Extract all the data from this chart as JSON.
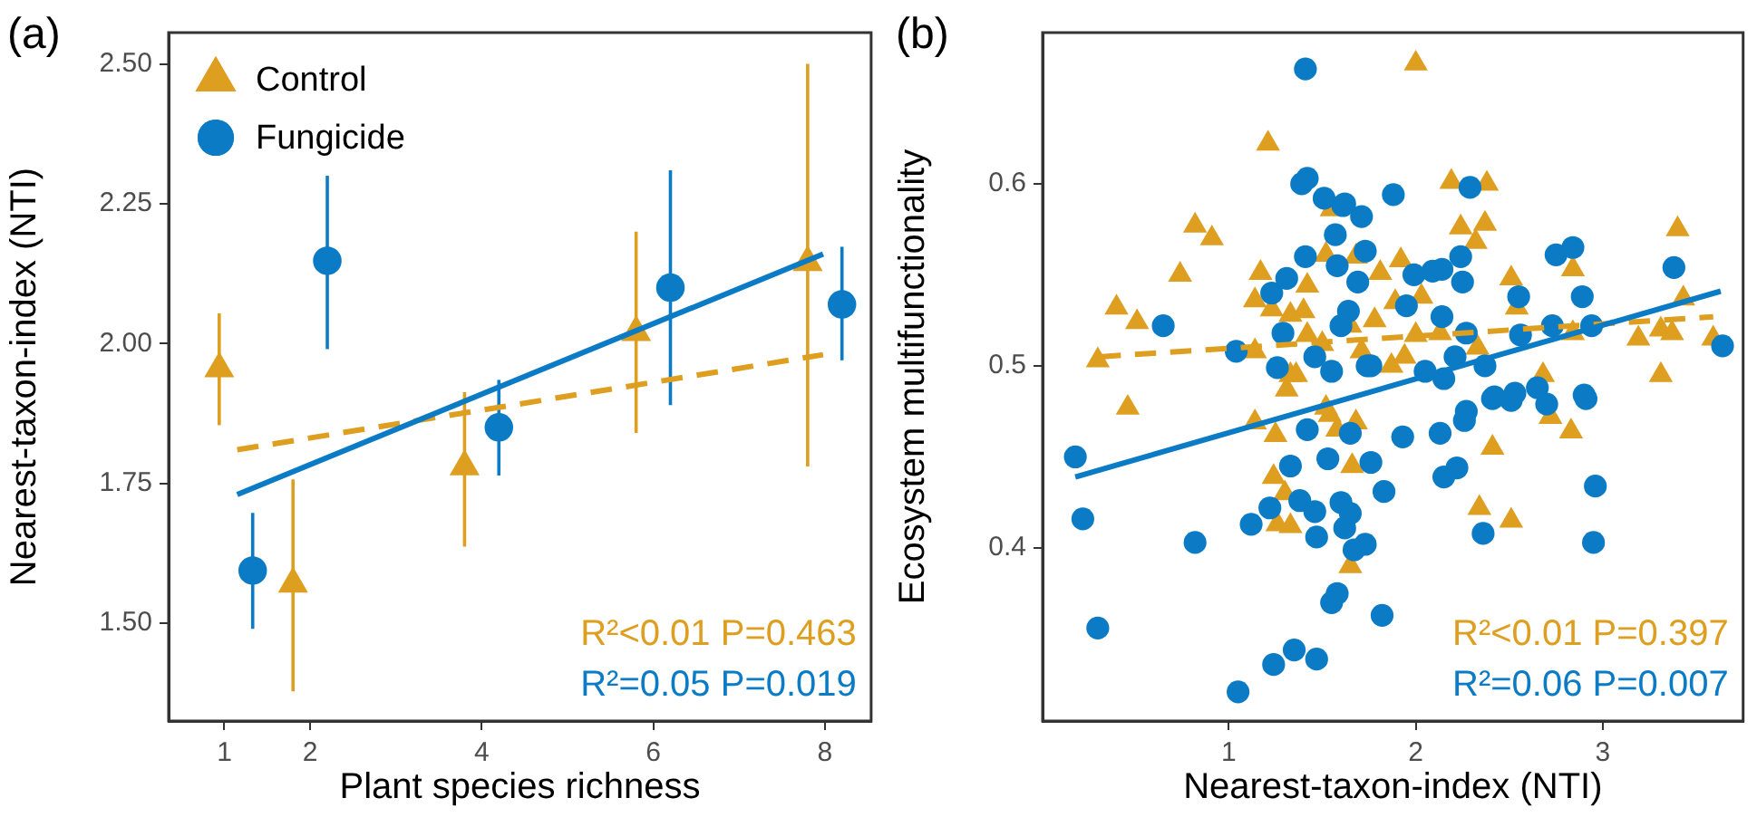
{
  "chart_data": [
    {
      "type": "scatter",
      "title": "(a)",
      "xlabel": "Plant species richness",
      "ylabel": "Nearest-taxon-index (NTI)",
      "xlim": [
        0.35,
        8.54
      ],
      "xticks": [
        1,
        2,
        4,
        6,
        8
      ],
      "ylim": [
        1.325,
        2.556
      ],
      "yticks": [
        {
          "value": 1.5,
          "label": "1.50"
        },
        {
          "value": 1.75,
          "label": "1.75"
        },
        {
          "value": 2,
          "label": "2.00"
        },
        2.25,
        {
          "value": 2.5,
          "label": "2.50"
        }
      ],
      "grid": false,
      "legend": "top left",
      "annotations": [
        "R²<0.01 P=0.463",
        "R²=0.05 P=0.019"
      ],
      "series": [
        {
          "name": "Control",
          "color": "#de9e1f",
          "marker": "triangle",
          "x": [
            0.94,
            1.8,
            3.8,
            5.8,
            7.8
          ],
          "values": [
            1.955,
            1.57,
            1.78,
            2.02,
            2.145
          ],
          "errors": [
            [
              1.854,
              2.054
            ],
            [
              1.378,
              1.757
            ],
            [
              1.637,
              1.913
            ],
            [
              1.84,
              2.2
            ],
            [
              1.78,
              2.5
            ]
          ]
        },
        {
          "name": "Fungicide",
          "color": "#0a7bc4",
          "marker": "circle",
          "x": [
            1.33,
            2.2,
            4.2,
            6.2,
            8.2
          ],
          "values": [
            1.594,
            2.148,
            1.85,
            2.1,
            2.07
          ],
          "errors": [
            [
              1.49,
              1.697
            ],
            [
              1.99,
              2.3
            ],
            [
              1.764,
              1.935
            ],
            [
              1.89,
              2.31
            ],
            [
              1.97,
              2.173
            ]
          ]
        },
        {
          "type": "line",
          "color": "#de9e1f",
          "line_style": "dashed",
          "marker": "none",
          "x": [
            1.15,
            7.98
          ],
          "values": [
            1.81,
            1.98
          ]
        },
        {
          "type": "line",
          "color": "#0a7bc4",
          "line_style": "solid",
          "marker": "none",
          "x": [
            1.15,
            7.98
          ],
          "values": [
            1.73,
            2.16
          ]
        }
      ]
    },
    {
      "type": "scatter",
      "title": "(b)",
      "xlabel": "Nearest-taxon-index (NTI)",
      "ylabel": "Ecosystem multifunctionality",
      "xlim": [
        0.005,
        3.75
      ],
      "xticks": [
        1,
        2,
        3
      ],
      "ylim": [
        0.305,
        0.683
      ],
      "yticks": [
        0.4,
        0.5,
        0.6
      ],
      "grid": false,
      "annotations": [
        "R²<0.01 P=0.397",
        "R²=0.06 P=0.007"
      ],
      "series": [
        {
          "color": "#de9e1f",
          "marker": "triangle",
          "x": [
            1.21,
            0.82,
            0.91,
            0.74,
            0.4,
            0.51,
            0.3,
            1.17,
            1.14,
            1.23,
            1.42,
            1.33,
            1.4,
            1.14,
            1.42,
            1.5,
            1.52,
            1.68,
            1.55,
            1.65,
            1.33,
            1.71,
            2.0,
            2.19,
            2.38,
            2.24,
            2.37,
            2.32,
            3.4,
            2.84,
            2.51,
            2.54,
            1.92,
            1.81,
            2.03,
            1.89,
            1.78,
            2.0,
            2.33,
            2.13,
            3.19,
            3.31,
            3.37,
            3.43,
            3.59,
            3.31,
            2.68,
            2.84,
            1.94,
            1.87,
            2.83,
            2.41,
            2.72,
            1.68,
            1.66,
            2.34,
            2.51,
            1.65,
            0.46,
            1.14,
            1.25,
            1.24,
            1.3,
            1.26,
            1.33,
            1.54,
            1.58,
            1.31,
            1.36,
            1.52
          ],
          "values": [
            0.622,
            0.577,
            0.57,
            0.55,
            0.532,
            0.524,
            0.503,
            0.551,
            0.536,
            0.531,
            0.544,
            0.528,
            0.53,
            0.508,
            0.517,
            0.512,
            0.561,
            0.56,
            0.586,
            0.522,
            0.495,
            0.508,
            0.666,
            0.601,
            0.6,
            0.576,
            0.578,
            0.568,
            0.575,
            0.553,
            0.548,
            0.532,
            0.558,
            0.551,
            0.538,
            0.535,
            0.525,
            0.517,
            0.51,
            0.518,
            0.515,
            0.52,
            0.518,
            0.537,
            0.515,
            0.495,
            0.495,
            0.518,
            0.505,
            0.5,
            0.464,
            0.455,
            0.472,
            0.469,
            0.445,
            0.422,
            0.415,
            0.39,
            0.477,
            0.469,
            0.462,
            0.439,
            0.43,
            0.413,
            0.412,
            0.473,
            0.465,
            0.487,
            0.495,
            0.477
          ]
        },
        {
          "color": "#0a7bc4",
          "marker": "circle",
          "x": [
            0.65,
            1.04,
            1.23,
            1.26,
            1.29,
            1.31,
            1.39,
            1.41,
            1.41,
            1.42,
            1.46,
            1.51,
            1.55,
            1.57,
            1.58,
            1.6,
            1.61,
            1.64,
            1.69,
            1.71,
            1.73,
            1.74,
            1.62,
            1.88,
            2.29,
            1.99,
            2.09,
            2.14,
            2.24,
            2.25,
            2.75,
            2.84,
            2.55,
            2.89,
            3.38,
            3.64,
            1.95,
            2.14,
            2.27,
            2.56,
            2.73,
            2.94,
            1.76,
            2.05,
            2.15,
            2.21,
            2.37,
            2.42,
            2.53,
            2.65,
            2.9,
            0.18,
            0.22,
            0.3,
            0.82,
            1.05,
            1.24,
            1.35,
            1.47,
            1.12,
            1.22,
            1.47,
            1.38,
            1.46,
            1.6,
            1.65,
            1.62,
            1.67,
            1.73,
            1.58,
            1.55,
            1.42,
            1.33,
            1.53,
            1.65,
            1.76,
            1.93,
            2.13,
            2.26,
            2.27,
            2.41,
            2.51,
            2.7,
            2.91,
            1.83,
            2.15,
            2.22,
            2.96,
            2.95,
            2.36,
            1.82
          ],
          "values": [
            0.522,
            0.508,
            0.54,
            0.499,
            0.518,
            0.548,
            0.6,
            0.663,
            0.56,
            0.603,
            0.505,
            0.592,
            0.497,
            0.572,
            0.555,
            0.522,
            0.588,
            0.53,
            0.546,
            0.582,
            0.563,
            0.5,
            0.589,
            0.594,
            0.598,
            0.55,
            0.552,
            0.553,
            0.56,
            0.546,
            0.561,
            0.565,
            0.538,
            0.538,
            0.554,
            0.511,
            0.533,
            0.527,
            0.518,
            0.517,
            0.522,
            0.522,
            0.5,
            0.497,
            0.493,
            0.505,
            0.5,
            0.483,
            0.485,
            0.488,
            0.484,
            0.45,
            0.416,
            0.356,
            0.403,
            0.321,
            0.336,
            0.344,
            0.339,
            0.413,
            0.422,
            0.406,
            0.426,
            0.42,
            0.425,
            0.419,
            0.411,
            0.399,
            0.402,
            0.375,
            0.37,
            0.465,
            0.445,
            0.449,
            0.463,
            0.447,
            0.461,
            0.463,
            0.47,
            0.475,
            0.482,
            0.481,
            0.479,
            0.482,
            0.431,
            0.439,
            0.444,
            0.434,
            0.403,
            0.408,
            0.363
          ]
        },
        {
          "type": "line",
          "color": "#de9e1f",
          "line_style": "dashed",
          "marker": "none",
          "x": [
            0.31,
            3.59
          ],
          "values": [
            0.505,
            0.527
          ]
        },
        {
          "type": "line",
          "color": "#0a7bc4",
          "line_style": "solid",
          "marker": "none",
          "x": [
            0.18,
            3.63
          ],
          "values": [
            0.439,
            0.541
          ]
        }
      ]
    }
  ]
}
